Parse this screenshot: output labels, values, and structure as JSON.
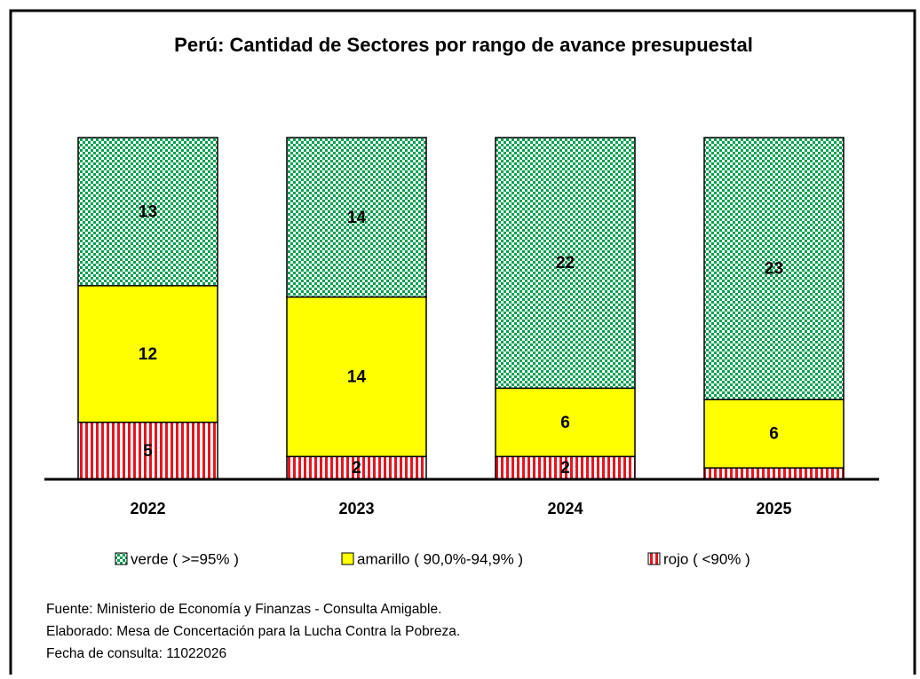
{
  "chart_data": {
    "type": "stacked_bar",
    "title": "Perú: Cantidad de Sectores por rango de avance presupuestal",
    "categories": [
      "2022",
      "2023",
      "2024",
      "2025"
    ],
    "series": [
      {
        "name": "verde ( >=95% )",
        "color": "#00a050",
        "pattern": "checker",
        "values": [
          13,
          14,
          22,
          23
        ]
      },
      {
        "name": "amarillo ( 90,0%-94,9% )",
        "color": "#ffff00",
        "pattern": "solid",
        "values": [
          12,
          14,
          6,
          6
        ]
      },
      {
        "name": "rojo ( <90% )",
        "color": "#e8141e",
        "pattern": "stripes",
        "values": [
          5,
          2,
          2,
          1
        ],
        "value_labels": [
          "5",
          "2",
          "2",
          null
        ]
      }
    ],
    "ylim": [
      0,
      30
    ],
    "legend": "bottom",
    "notes": [
      "Fuente: Ministerio de Economía y Finanzas - Consulta Amigable.",
      "Elaborado: Mesa de Concertación para la Lucha Contra la Pobreza.",
      "Fecha de consulta: 11022026"
    ]
  }
}
